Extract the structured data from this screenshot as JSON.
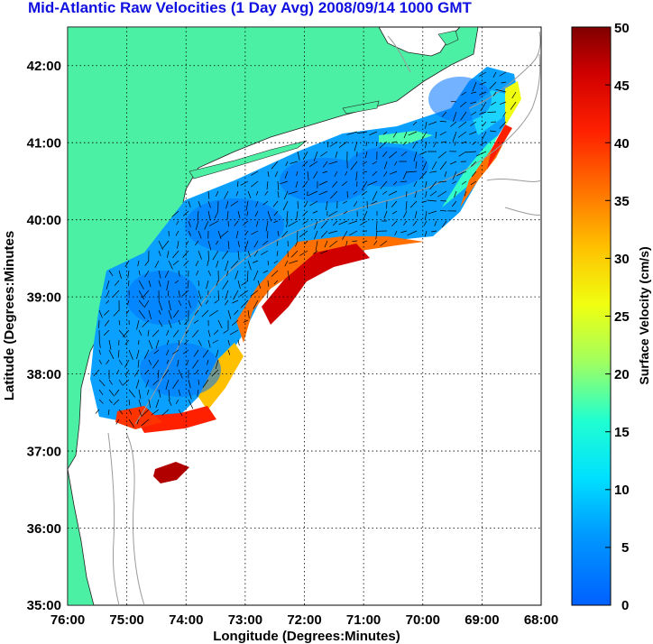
{
  "title": "Mid-Atlantic Raw Velocities (1 Day Avg) 2008/09/14 1000 GMT",
  "xlabel": "Longitude (Degrees:Minutes)",
  "ylabel": "Latitude (Degrees:Minutes",
  "x_ticks": [
    "76:00",
    "75:00",
    "74:00",
    "73:00",
    "72:00",
    "71:00",
    "70:00",
    "69:00",
    "68:00"
  ],
  "y_ticks": [
    "42:00",
    "41:00",
    "40:00",
    "39:00",
    "38:00",
    "37:00",
    "36:00",
    "35:00"
  ],
  "colorbar": {
    "label": "Surface Velocity (cm/s)",
    "ticks": [
      "50",
      "45",
      "40",
      "35",
      "30",
      "25",
      "20",
      "15",
      "10",
      "5",
      "0"
    ],
    "min": 0,
    "max": 50
  },
  "colors": {
    "land": "#4cf0a4",
    "title": "#1010e0",
    "bathymetry": "#9a9a9a",
    "grid": "#000000"
  },
  "chart_data": {
    "type": "heatmap",
    "title": "Mid-Atlantic Raw Velocities (1 Day Avg) 2008/09/14 1000 GMT",
    "xlabel": "Longitude (Degrees:Minutes)",
    "ylabel": "Latitude (Degrees:Minutes",
    "xlim": [
      -76,
      -68
    ],
    "ylim": [
      35,
      42.5
    ],
    "grid": true,
    "colorbar_range": [
      0,
      50
    ],
    "colorbar_label": "Surface Velocity (cm/s)"
  }
}
